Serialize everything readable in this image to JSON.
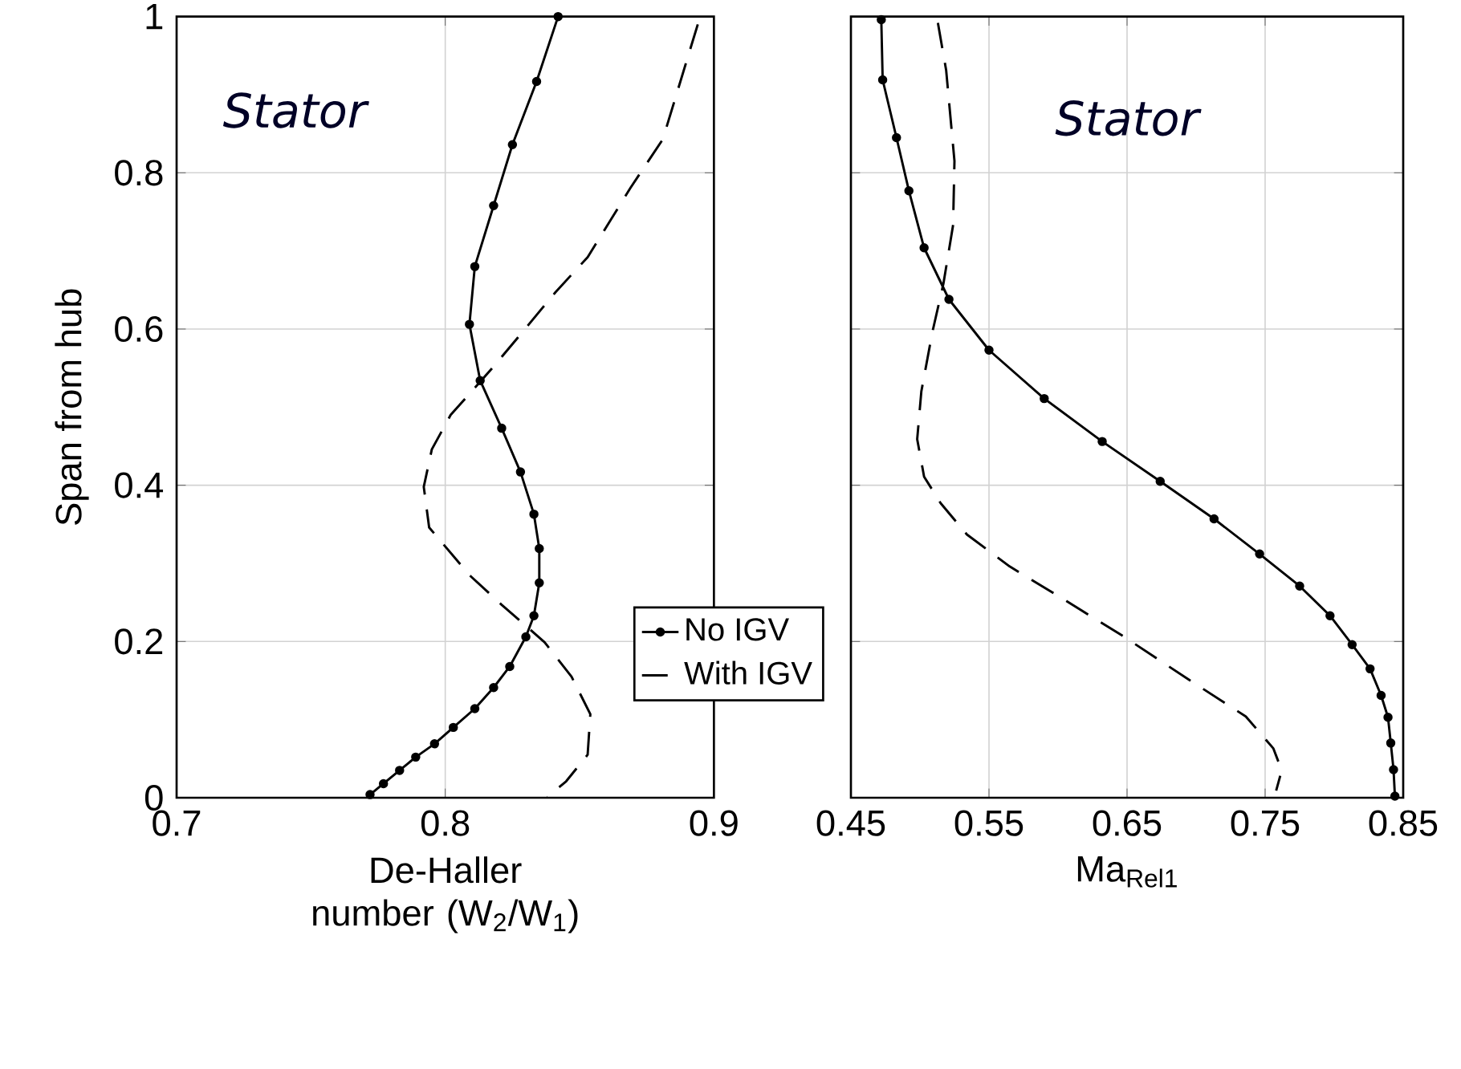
{
  "chart_data": [
    {
      "type": "line",
      "xlabel": "De-Haller number (W$_{2}$/W$_{1}$)",
      "ylabel": "Span from hub",
      "annotations": [
        "Stator"
      ],
      "xlim": [
        0.7,
        0.9
      ],
      "ylim": [
        0,
        1
      ],
      "xticks": [
        0.7,
        0.8,
        0.9
      ],
      "yticks": [
        0,
        0.2,
        0.4,
        0.6,
        0.8,
        1
      ],
      "grid": true,
      "legend": "bottom right",
      "series": [
        {
          "name": "No IGV",
          "color": "#000000",
          "marker": "circle",
          "line_style": "solid",
          "x": [
            0.842,
            0.834,
            0.825,
            0.818,
            0.811,
            0.809,
            0.813,
            0.821,
            0.828,
            0.833,
            0.835,
            0.835,
            0.833,
            0.83,
            0.824,
            0.818,
            0.811,
            0.803,
            0.796,
            0.789,
            0.783,
            0.777,
            0.772
          ],
          "values": [
            1.0,
            0.917,
            0.836,
            0.758,
            0.68,
            0.606,
            0.534,
            0.473,
            0.417,
            0.363,
            0.319,
            0.275,
            0.233,
            0.206,
            0.168,
            0.141,
            0.114,
            0.09,
            0.069,
            0.052,
            0.035,
            0.018,
            0.004
          ]
        },
        {
          "name": "With IGV",
          "color": "#000000",
          "marker": "none",
          "line_style": "dashed",
          "x": [
            0.894,
            0.89,
            0.881,
            0.869,
            0.853,
            0.841,
            0.827,
            0.817,
            0.802,
            0.795,
            0.792,
            0.794,
            0.809,
            0.821,
            0.837,
            0.847,
            0.854,
            0.853,
            0.845,
            0.838
          ],
          "values": [
            0.99,
            0.945,
            0.843,
            0.781,
            0.692,
            0.647,
            0.589,
            0.548,
            0.49,
            0.446,
            0.398,
            0.346,
            0.285,
            0.247,
            0.199,
            0.155,
            0.107,
            0.055,
            0.021,
            0.001
          ]
        }
      ]
    },
    {
      "type": "line",
      "xlabel": "Ma$_{Rel1}$",
      "annotations": [
        "Stator"
      ],
      "tick_labels": "x",
      "xlim": [
        0.45,
        0.85
      ],
      "ylim": [
        0,
        1
      ],
      "xticks": [
        0.45,
        0.55,
        0.65,
        0.75,
        0.85
      ],
      "yticks": [
        0,
        0.2,
        0.4,
        0.6,
        0.8,
        1
      ],
      "grid": true,
      "series": [
        {
          "color": "#000000",
          "marker": "circle",
          "line_style": "solid",
          "x": [
            0.472,
            0.473,
            0.483,
            0.492,
            0.503,
            0.521,
            0.55,
            0.59,
            0.632,
            0.674,
            0.713,
            0.746,
            0.775,
            0.797,
            0.813,
            0.826,
            0.834,
            0.839,
            0.841,
            0.843,
            0.844
          ],
          "values": [
            0.996,
            0.919,
            0.845,
            0.777,
            0.704,
            0.638,
            0.573,
            0.511,
            0.456,
            0.405,
            0.357,
            0.312,
            0.271,
            0.233,
            0.196,
            0.165,
            0.131,
            0.103,
            0.07,
            0.036,
            0.002
          ]
        },
        {
          "color": "#000000",
          "marker": "none",
          "line_style": "dashed",
          "x": [
            0.513,
            0.519,
            0.525,
            0.524,
            0.517,
            0.509,
            0.501,
            0.498,
            0.503,
            0.515,
            0.534,
            0.565,
            0.604,
            0.647,
            0.694,
            0.736,
            0.756,
            0.762,
            0.758
          ],
          "values": [
            0.992,
            0.931,
            0.815,
            0.733,
            0.658,
            0.596,
            0.52,
            0.459,
            0.411,
            0.377,
            0.337,
            0.296,
            0.254,
            0.207,
            0.152,
            0.104,
            0.063,
            0.035,
            0.009
          ]
        }
      ]
    }
  ]
}
